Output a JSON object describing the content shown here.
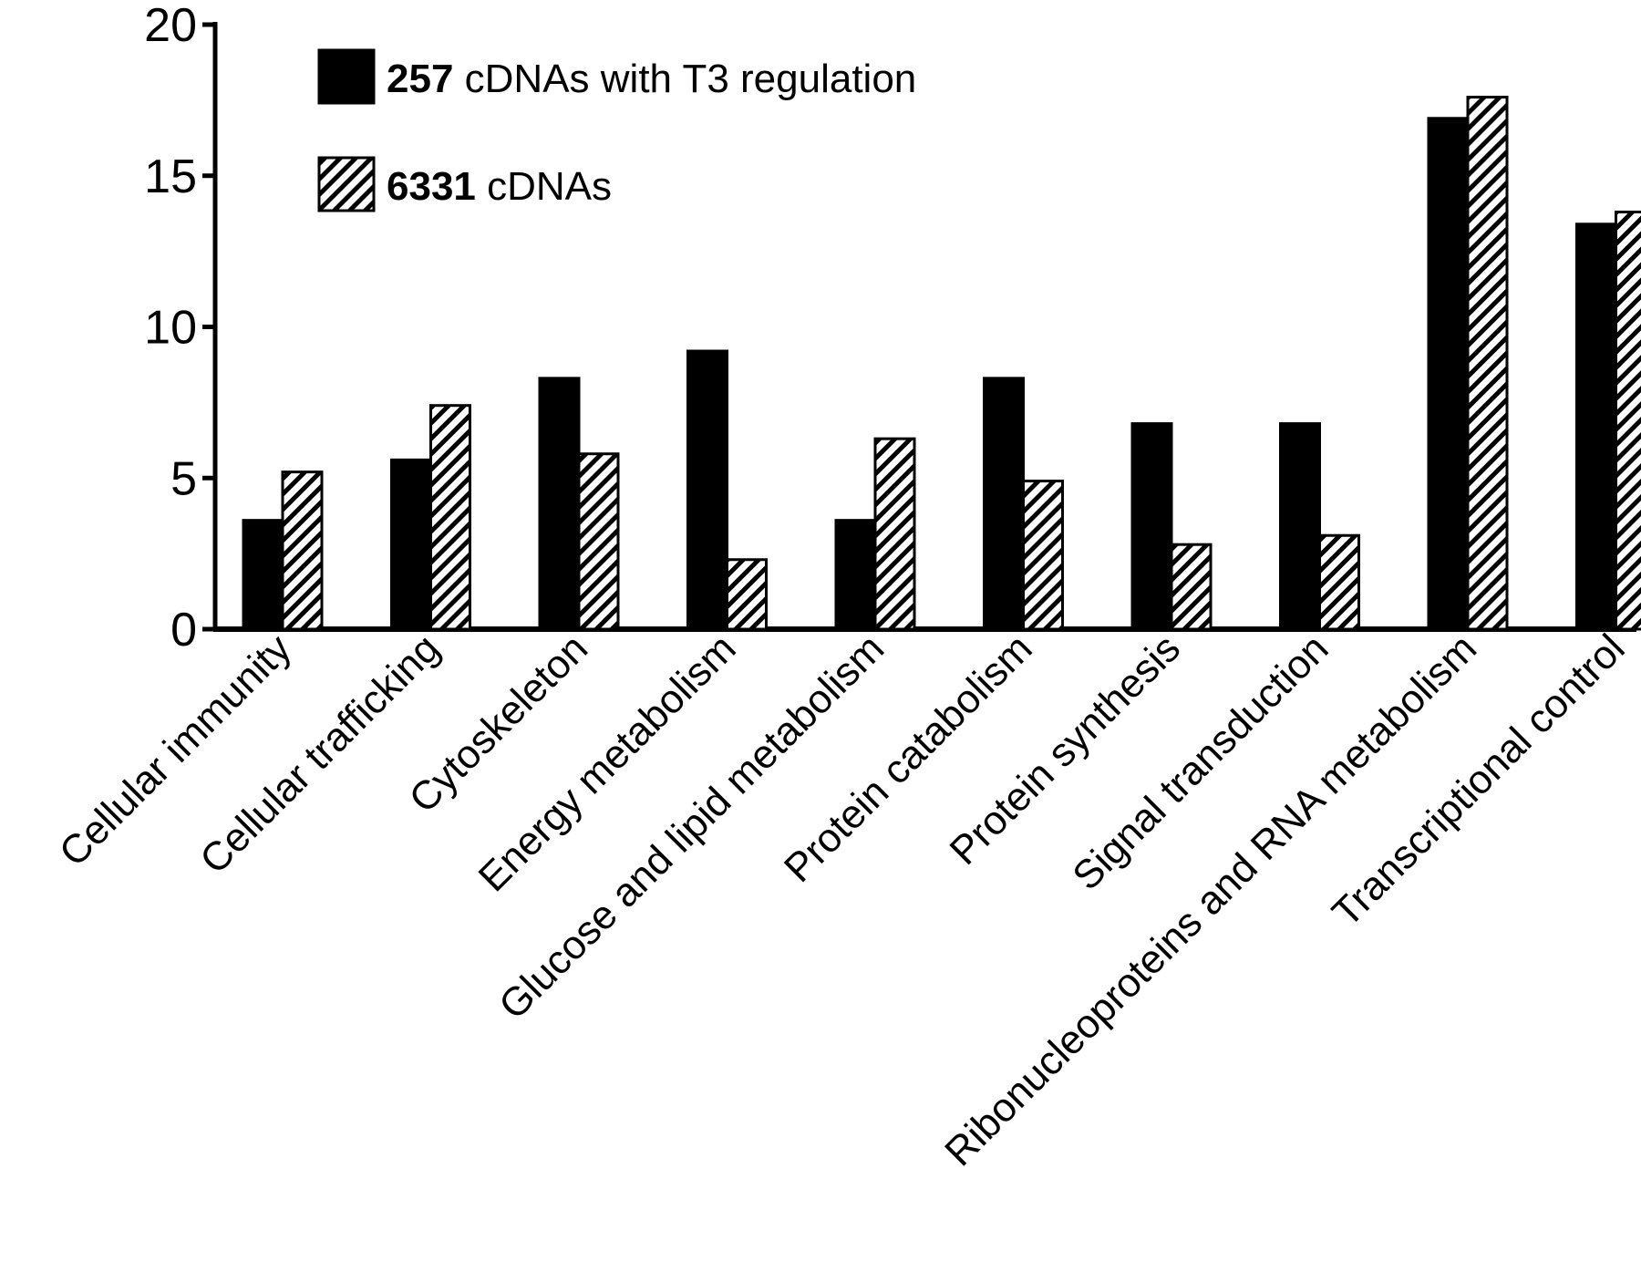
{
  "chart_data": {
    "type": "bar",
    "title": "",
    "xlabel": "",
    "ylabel": "",
    "ylim": [
      0,
      20
    ],
    "yticks": [
      "0",
      "5",
      "10",
      "15",
      "20"
    ],
    "grid": false,
    "legend_position": "top-left",
    "categories": [
      "Cellular immunity",
      "Cellular trafficking",
      "Cytoskeleton",
      "Energy metabolism",
      "Glucose and lipid metabolism",
      "Protein catabolism",
      "Protein synthesis",
      "Signal transduction",
      "Ribonucleoproteins and RNA metabolism",
      "Transcriptional control"
    ],
    "series": [
      {
        "name": "257 cDNAs with T3 regulation",
        "name_bold": "257",
        "name_rest": " cDNAs with T3 regulation",
        "fill": "solid",
        "color": "#000000",
        "values": [
          3.6,
          5.6,
          8.3,
          9.2,
          3.6,
          8.3,
          6.8,
          6.8,
          16.9,
          13.4
        ]
      },
      {
        "name": "6331 cDNAs",
        "name_bold": "6331",
        "name_rest": " cDNAs",
        "fill": "hatched",
        "color": "#000000",
        "values": [
          5.2,
          7.4,
          5.8,
          2.3,
          6.3,
          4.9,
          2.8,
          3.1,
          17.6,
          13.8
        ]
      }
    ]
  }
}
